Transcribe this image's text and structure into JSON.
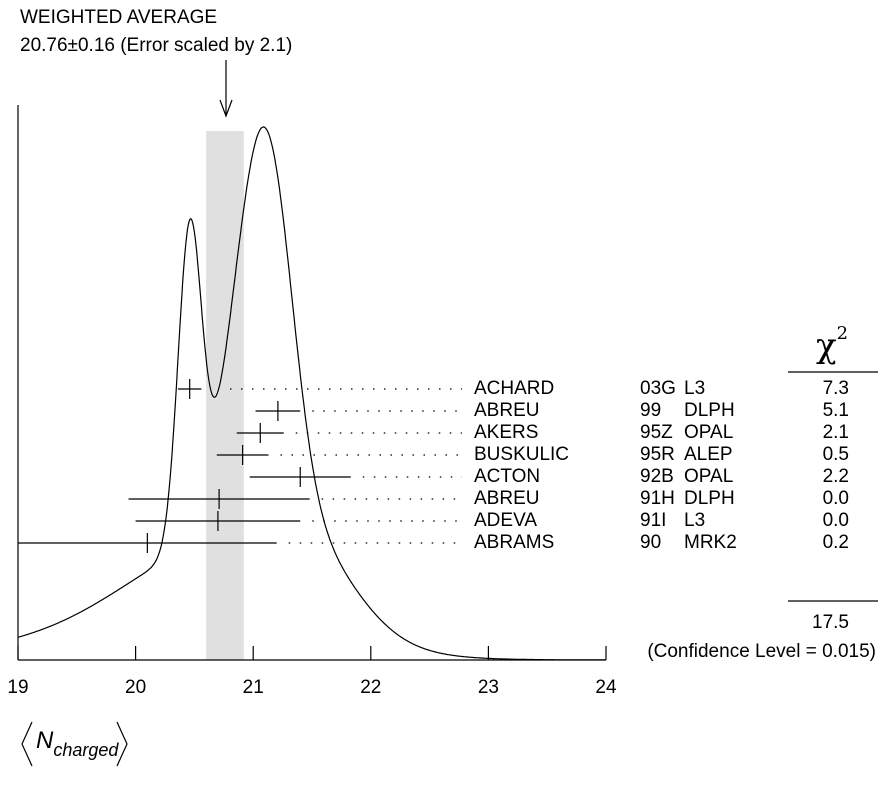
{
  "chart_data": {
    "type": "ideogram",
    "title": "WEIGHTED AVERAGE",
    "subtitle": "20.76±0.16 (Error scaled by 2.1)",
    "average": 20.76,
    "average_error": 0.16,
    "xlim": [
      19,
      24
    ],
    "xticks": [
      19,
      20,
      21,
      22,
      23,
      24
    ],
    "xlabel": "N",
    "xlabel_sub": "charged",
    "chi2_header": "χ",
    "chi2_header_sup": "2",
    "measurements": [
      {
        "name": "ACHARD",
        "ref": "03G",
        "experiment": "L3",
        "value": 20.46,
        "error": 0.1,
        "chi2": "7.3"
      },
      {
        "name": "ABREU",
        "ref": "99",
        "experiment": "DLPH",
        "value": 21.21,
        "error": 0.19,
        "chi2": "5.1"
      },
      {
        "name": "AKERS",
        "ref": "95Z",
        "experiment": "OPAL",
        "value": 21.06,
        "error": 0.2,
        "chi2": "2.1"
      },
      {
        "name": "BUSKULIC",
        "ref": "95R",
        "experiment": "ALEP",
        "value": 20.91,
        "error": 0.22,
        "chi2": "0.5"
      },
      {
        "name": "ACTON",
        "ref": "92B",
        "experiment": "OPAL",
        "value": 21.4,
        "error": 0.43,
        "chi2": "2.2"
      },
      {
        "name": "ABREU",
        "ref": "91H",
        "experiment": "DLPH",
        "value": 20.71,
        "error": 0.77,
        "chi2": "0.0"
      },
      {
        "name": "ADEVA",
        "ref": "91I",
        "experiment": "L3",
        "value": 20.7,
        "error": 0.7,
        "chi2": "0.0"
      },
      {
        "name": "ABRAMS",
        "ref": "90",
        "experiment": "MRK2",
        "value": 20.1,
        "error": 1.1,
        "chi2": "0.2"
      }
    ],
    "chi2_total": "17.5",
    "confidence_level": "(Confidence Level = 0.015)"
  }
}
